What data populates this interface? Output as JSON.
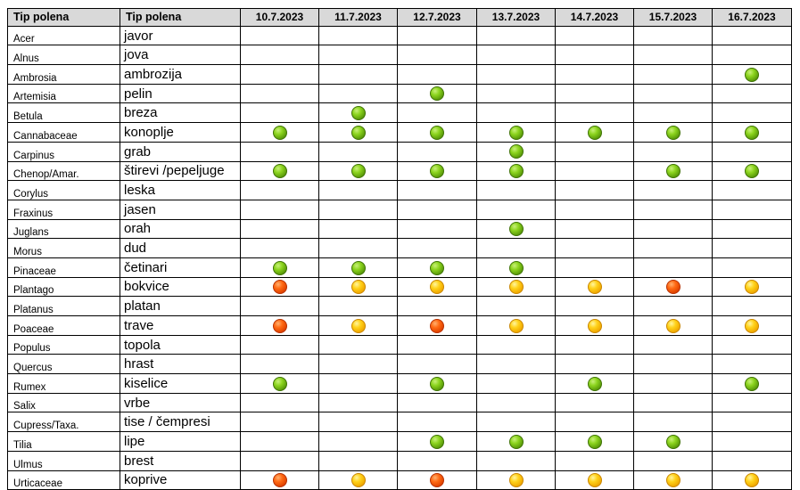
{
  "header": {
    "col_latin": "Tip polena",
    "col_local": "Tip polena",
    "dates": [
      "10.7.2023",
      "11.7.2023",
      "12.7.2023",
      "13.7.2023",
      "14.7.2023",
      "15.7.2023",
      "16.7.2023"
    ]
  },
  "legend_colors": {
    "green": "#7dc41a",
    "yellow": "#ffcc00",
    "red": "#ff5a0a"
  },
  "rows": [
    {
      "latin": "Acer",
      "local": "javor",
      "levels": [
        "",
        "",
        "",
        "",
        "",
        "",
        ""
      ]
    },
    {
      "latin": "Alnus",
      "local": "jova",
      "levels": [
        "",
        "",
        "",
        "",
        "",
        "",
        ""
      ]
    },
    {
      "latin": "Ambrosia",
      "local": "ambrozija",
      "levels": [
        "",
        "",
        "",
        "",
        "",
        "",
        "green"
      ]
    },
    {
      "latin": "Artemisia",
      "local": "pelin",
      "levels": [
        "",
        "",
        "green",
        "",
        "",
        "",
        ""
      ]
    },
    {
      "latin": "Betula",
      "local": "breza",
      "levels": [
        "",
        "green",
        "",
        "",
        "",
        "",
        ""
      ]
    },
    {
      "latin": "Cannabaceae",
      "local": "konoplje",
      "levels": [
        "green",
        "green",
        "green",
        "green",
        "green",
        "green",
        "green"
      ]
    },
    {
      "latin": "Carpinus",
      "local": "grab",
      "levels": [
        "",
        "",
        "",
        "green",
        "",
        "",
        ""
      ]
    },
    {
      "latin": "Chenop/Amar.",
      "local": "štirevi /pepeljuge",
      "levels": [
        "green",
        "green",
        "green",
        "green",
        "",
        "green",
        "green"
      ]
    },
    {
      "latin": "Corylus",
      "local": "leska",
      "levels": [
        "",
        "",
        "",
        "",
        "",
        "",
        ""
      ]
    },
    {
      "latin": "Fraxinus",
      "local": "jasen",
      "levels": [
        "",
        "",
        "",
        "",
        "",
        "",
        ""
      ]
    },
    {
      "latin": "Juglans",
      "local": "orah",
      "levels": [
        "",
        "",
        "",
        "green",
        "",
        "",
        ""
      ]
    },
    {
      "latin": "Morus",
      "local": "dud",
      "levels": [
        "",
        "",
        "",
        "",
        "",
        "",
        ""
      ]
    },
    {
      "latin": "Pinaceae",
      "local": "četinari",
      "levels": [
        "green",
        "green",
        "green",
        "green",
        "",
        "",
        ""
      ]
    },
    {
      "latin": "Plantago",
      "local": "bokvice",
      "levels": [
        "red",
        "yellow",
        "yellow",
        "yellow",
        "yellow",
        "red",
        "yellow"
      ]
    },
    {
      "latin": "Platanus",
      "local": "platan",
      "levels": [
        "",
        "",
        "",
        "",
        "",
        "",
        ""
      ]
    },
    {
      "latin": "Poaceae",
      "local": "trave",
      "levels": [
        "red",
        "yellow",
        "red",
        "yellow",
        "yellow",
        "yellow",
        "yellow"
      ]
    },
    {
      "latin": "Populus",
      "local": "topola",
      "levels": [
        "",
        "",
        "",
        "",
        "",
        "",
        ""
      ]
    },
    {
      "latin": "Quercus",
      "local": "hrast",
      "levels": [
        "",
        "",
        "",
        "",
        "",
        "",
        ""
      ]
    },
    {
      "latin": "Rumex",
      "local": "kiselice",
      "levels": [
        "green",
        "",
        "green",
        "",
        "green",
        "",
        "green"
      ]
    },
    {
      "latin": "Salix",
      "local": "vrbe",
      "levels": [
        "",
        "",
        "",
        "",
        "",
        "",
        ""
      ]
    },
    {
      "latin": "Cupress/Taxa.",
      "local": "tise / čempresi",
      "levels": [
        "",
        "",
        "",
        "",
        "",
        "",
        ""
      ]
    },
    {
      "latin": "Tilia",
      "local": "lipe",
      "levels": [
        "",
        "",
        "green",
        "green",
        "green",
        "green",
        ""
      ]
    },
    {
      "latin": "Ulmus",
      "local": "brest",
      "levels": [
        "",
        "",
        "",
        "",
        "",
        "",
        ""
      ]
    },
    {
      "latin": "Urticaceae",
      "local": "koprive",
      "levels": [
        "red",
        "yellow",
        "red",
        "yellow",
        "yellow",
        "yellow",
        "yellow"
      ]
    }
  ]
}
